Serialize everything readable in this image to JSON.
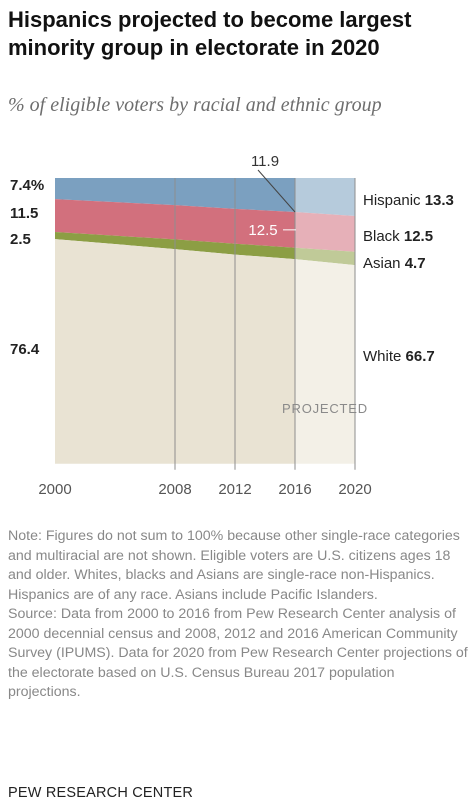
{
  "title": "Hispanics projected to become largest minority group in electorate in 2020",
  "subtitle": "% of eligible voters by racial and ethnic group",
  "chart_data": {
    "type": "area",
    "stacked": true,
    "x": [
      2000,
      2008,
      2012,
      2016,
      2020
    ],
    "x_ticks": [
      "2000",
      "2008",
      "2012",
      "2016",
      "2020"
    ],
    "projected_from": 2016,
    "projected_label": "PROJECTED",
    "series": [
      {
        "name": "White",
        "values": [
          76.4,
          73.0,
          71.1,
          69.2,
          66.7
        ],
        "color": "#e9e3d3",
        "label_value": "66.7",
        "start_label": "76.4"
      },
      {
        "name": "Asian",
        "values": [
          2.5,
          3.4,
          3.8,
          4.0,
          4.7
        ],
        "color": "#8c9e44",
        "label_value": "4.7",
        "start_label": "2.5"
      },
      {
        "name": "Black",
        "values": [
          11.5,
          12.0,
          12.2,
          12.5,
          12.5
        ],
        "color": "#d2707d",
        "label_value": "12.5",
        "start_label": "11.5",
        "callout": "12.5"
      },
      {
        "name": "Hispanic",
        "values": [
          7.4,
          9.5,
          10.8,
          11.9,
          13.3
        ],
        "color": "#7ba0c0",
        "label_value": "13.3",
        "start_label": "7.4%",
        "callout": "11.9"
      }
    ],
    "ylim": [
      0,
      100
    ],
    "grid": "vertical-at-ticks"
  },
  "note": "Note: Figures do not sum to 100% because other single-race categories and multiracial are not shown. Eligible voters are U.S. citizens ages 18 and older. Whites, blacks and Asians are single-race non-Hispanics. Hispanics are of any race. Asians include Pacific Islanders.",
  "source": "Source: Data from 2000 to 2016 from Pew Research Center analysis of 2000 decennial census and 2008, 2012 and 2016 American Community Survey (IPUMS). Data for 2020 from Pew Research Center projections of the electorate based on U.S. Census Bureau 2017 population projections.",
  "brand": "PEW RESEARCH CENTER"
}
